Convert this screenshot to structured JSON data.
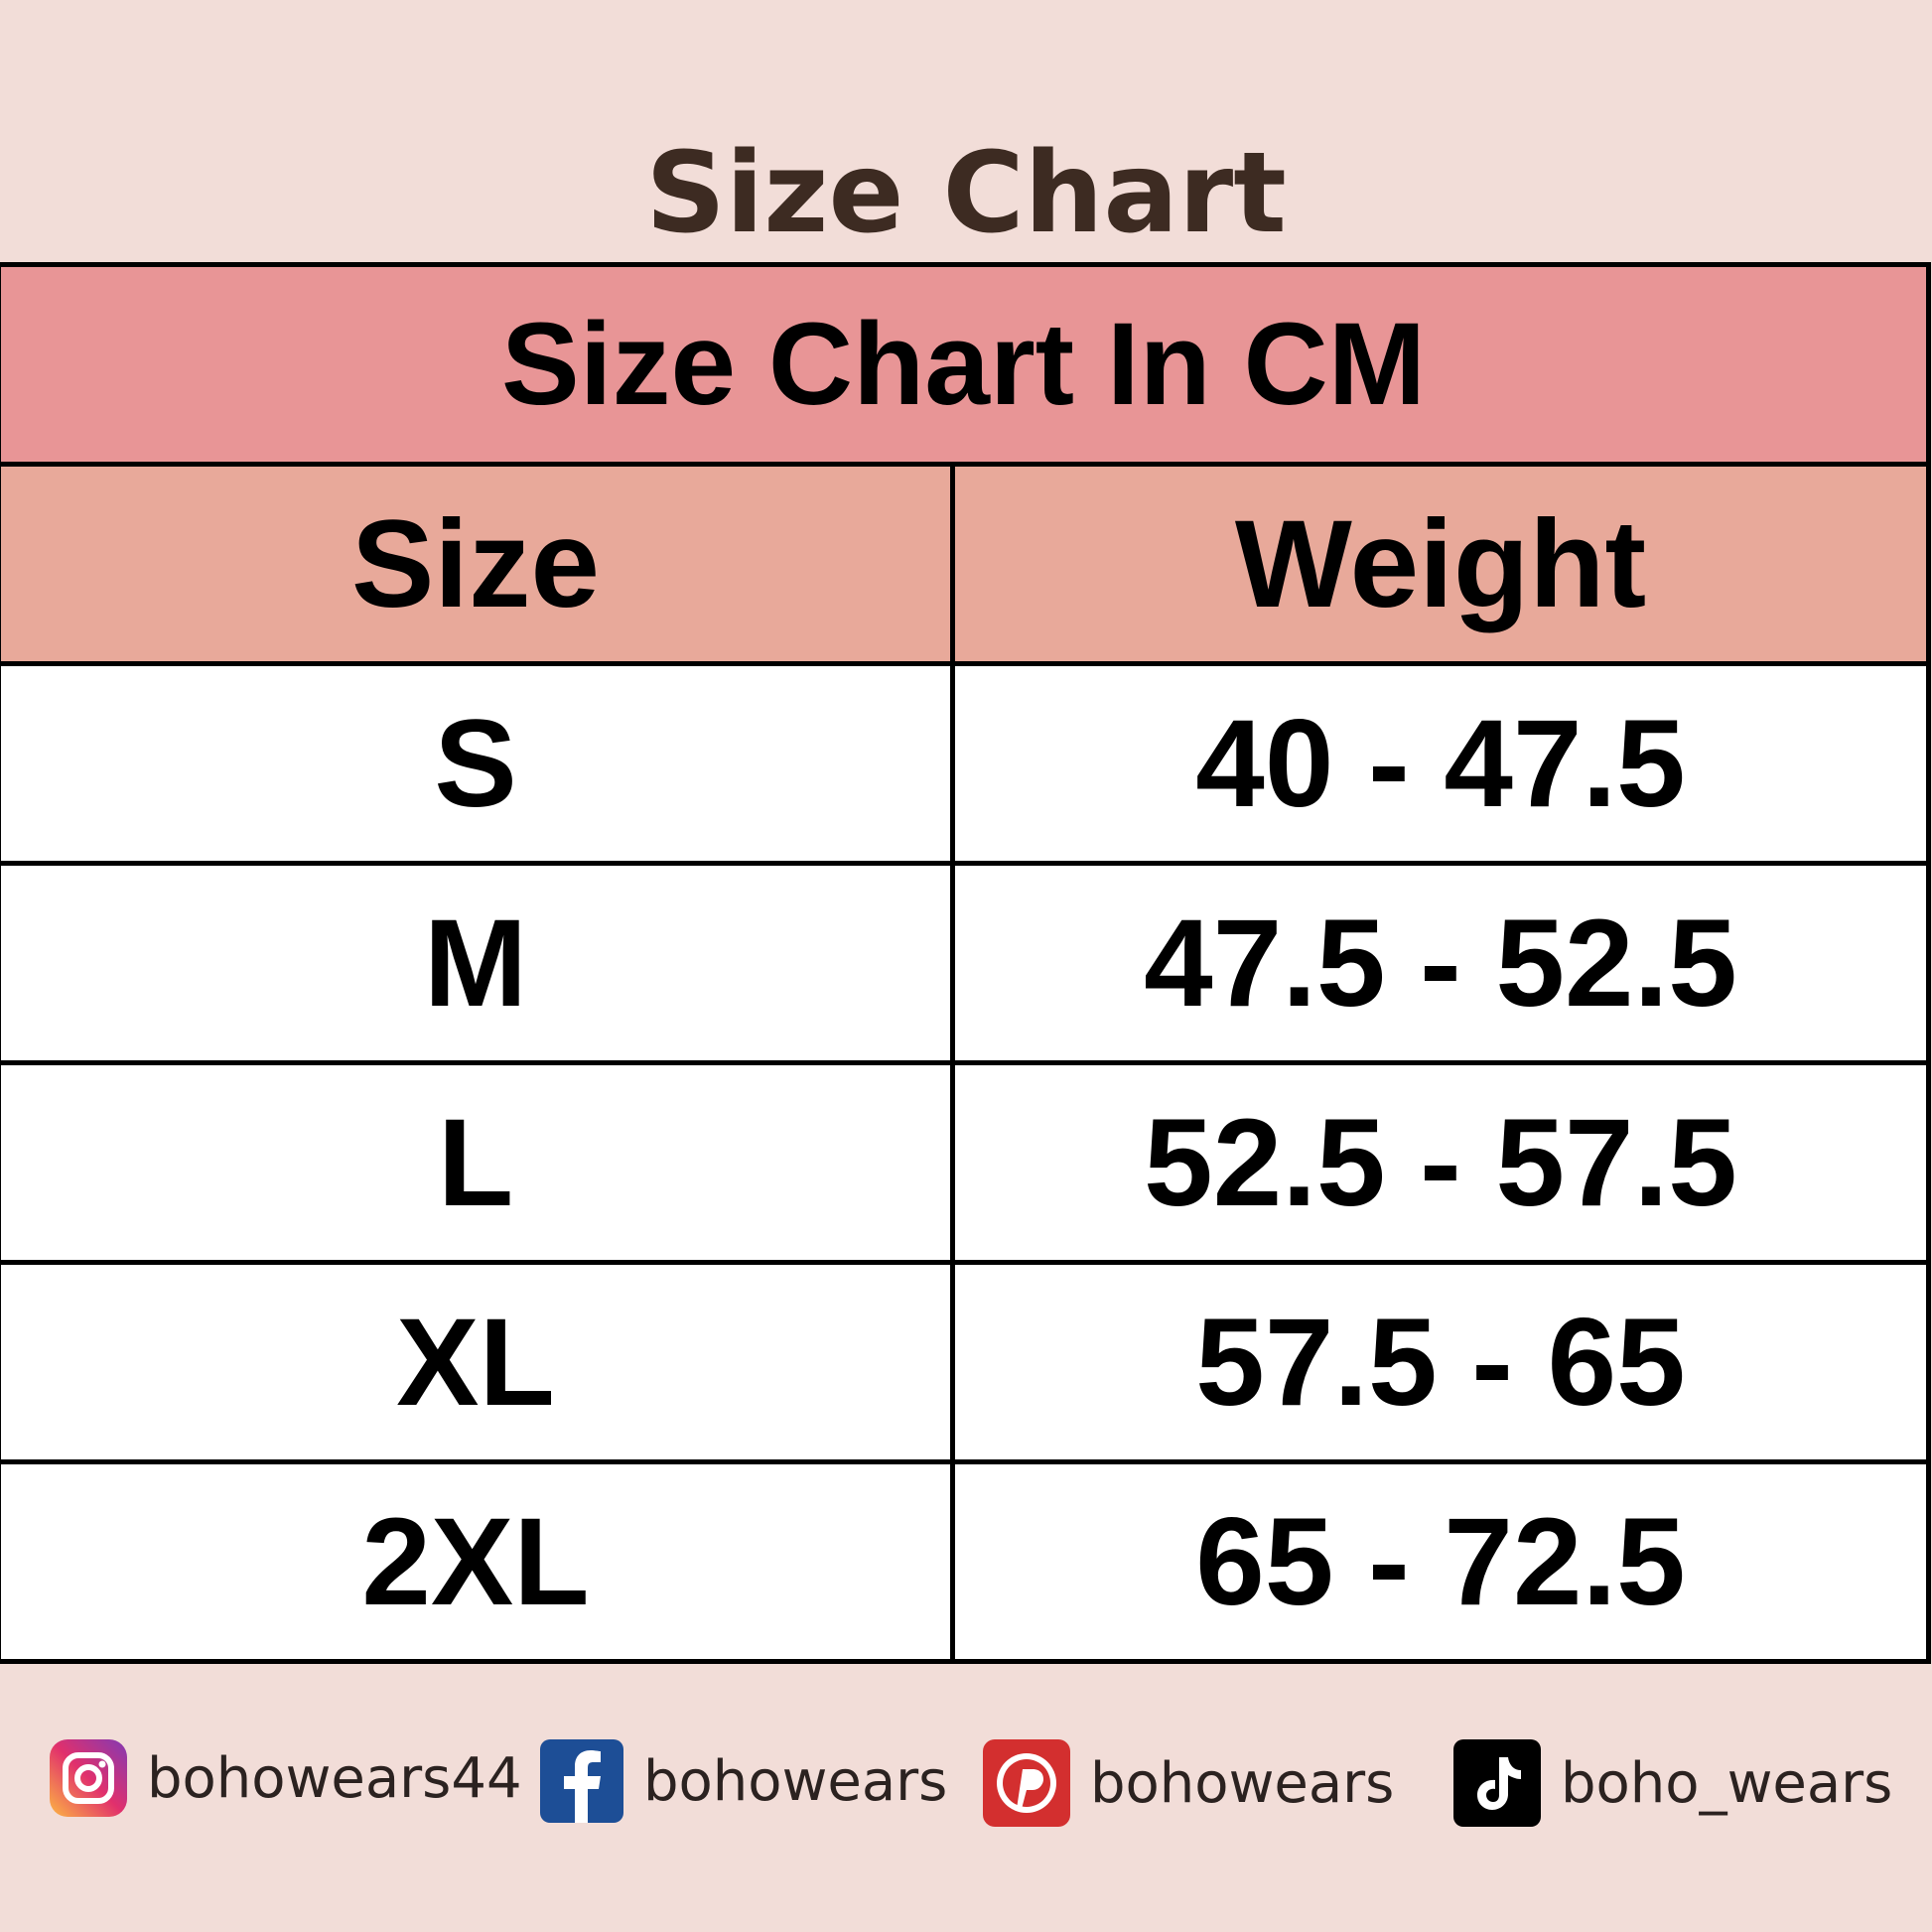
{
  "header": {
    "title": "Size Chart"
  },
  "table": {
    "caption": "Size Chart In CM",
    "columns": [
      "Size",
      "Weight"
    ],
    "rows": [
      [
        "S",
        "40 - 47.5"
      ],
      [
        "M",
        "47.5 - 52.5"
      ],
      [
        "L",
        "52.5 - 57.5"
      ],
      [
        "XL",
        "57.5 - 65"
      ],
      [
        "2XL",
        "65 - 72.5"
      ]
    ]
  },
  "social": [
    {
      "handle": "bohowears44"
    },
    {
      "handle": "bohowears"
    },
    {
      "handle": "bohowears"
    },
    {
      "handle": "boho_wears"
    }
  ]
}
